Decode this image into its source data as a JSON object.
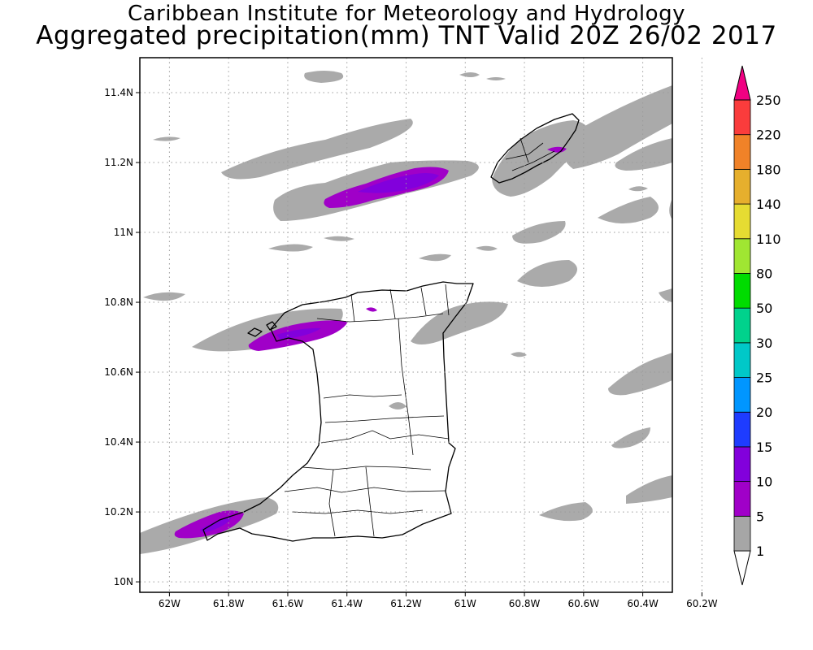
{
  "header": {
    "line1": "Caribbean Institute for Meteorology and Hydrology",
    "line2": "Aggregated precipitation(mm) TNT Valid 20Z 26/02 2017"
  },
  "map": {
    "lon_range": [
      -62.1,
      -60.3
    ],
    "lat_range": [
      9.97,
      11.5
    ],
    "lon_ticks": [
      {
        "value": -62.0,
        "label": "62W"
      },
      {
        "value": -61.8,
        "label": "61.8W"
      },
      {
        "value": -61.6,
        "label": "61.6W"
      },
      {
        "value": -61.4,
        "label": "61.4W"
      },
      {
        "value": -61.2,
        "label": "61.2W"
      },
      {
        "value": -61.0,
        "label": "61W"
      },
      {
        "value": -60.8,
        "label": "60.8W"
      },
      {
        "value": -60.6,
        "label": "60.6W"
      },
      {
        "value": -60.4,
        "label": "60.4W"
      },
      {
        "value": -60.2,
        "label": "60.2W"
      }
    ],
    "lat_ticks": [
      {
        "value": 10.0,
        "label": "10N"
      },
      {
        "value": 10.2,
        "label": "10.2N"
      },
      {
        "value": 10.4,
        "label": "10.4N"
      },
      {
        "value": 10.6,
        "label": "10.6N"
      },
      {
        "value": 10.8,
        "label": "10.8N"
      },
      {
        "value": 11.0,
        "label": "11N"
      },
      {
        "value": 11.2,
        "label": "11.2N"
      },
      {
        "value": 11.4,
        "label": "11.4N"
      }
    ],
    "grid": "dotted"
  },
  "colorbar": {
    "labels": [
      "1",
      "5",
      "10",
      "15",
      "20",
      "25",
      "30",
      "50",
      "80",
      "110",
      "140",
      "180",
      "220",
      "250"
    ],
    "colors": [
      "#a6a6a6",
      "#a000c8",
      "#8200dc",
      "#1e3cff",
      "#0096ff",
      "#00c8c8",
      "#00d28c",
      "#00dc00",
      "#a0e632",
      "#e6dc32",
      "#e6af2d",
      "#f08228",
      "#fa3c3c",
      "#f00082"
    ]
  },
  "colors": {
    "light_rain": "#aaaaaa",
    "moderate_rain": "#a000c8",
    "heavier_rain": "#8200dc",
    "land_outline": "#000000"
  }
}
